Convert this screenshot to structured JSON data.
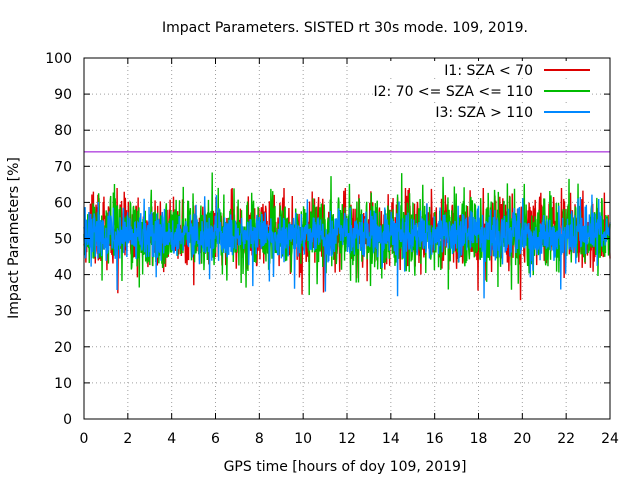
{
  "chart_data": {
    "type": "line",
    "title": "Impact Parameters. SISTED rt 30s mode. 109, 2019.",
    "xlabel": "GPS time [hours of doy 109, 2019]",
    "ylabel": "Impact Parameters [%]",
    "xlim": [
      0,
      24
    ],
    "ylim": [
      0,
      100
    ],
    "xticks": [
      "0",
      "2",
      "4",
      "6",
      "8",
      "10",
      "12",
      "14",
      "16",
      "18",
      "20",
      "22",
      "24"
    ],
    "yticks": [
      "0",
      "10",
      "20",
      "30",
      "40",
      "50",
      "60",
      "70",
      "80",
      "90",
      "100"
    ],
    "grid": true,
    "legend_position": "top-right",
    "threshold_line": {
      "value": 74,
      "color": "#9400d3"
    },
    "series": [
      {
        "name": "I1: SZA < 70",
        "color": "#dd0000",
        "mean": 51,
        "spread_low": 42,
        "spread_high": 62,
        "min": 32,
        "max": 64
      },
      {
        "name": "I2: 70 <= SZA <= 110",
        "color": "#00bb00",
        "mean": 51,
        "spread_low": 41,
        "spread_high": 63,
        "min": 34,
        "max": 70
      },
      {
        "name": "I3: SZA > 110",
        "color": "#0088ff",
        "mean": 51,
        "spread_low": 44,
        "spread_high": 58,
        "min": 32,
        "max": 63
      }
    ]
  }
}
